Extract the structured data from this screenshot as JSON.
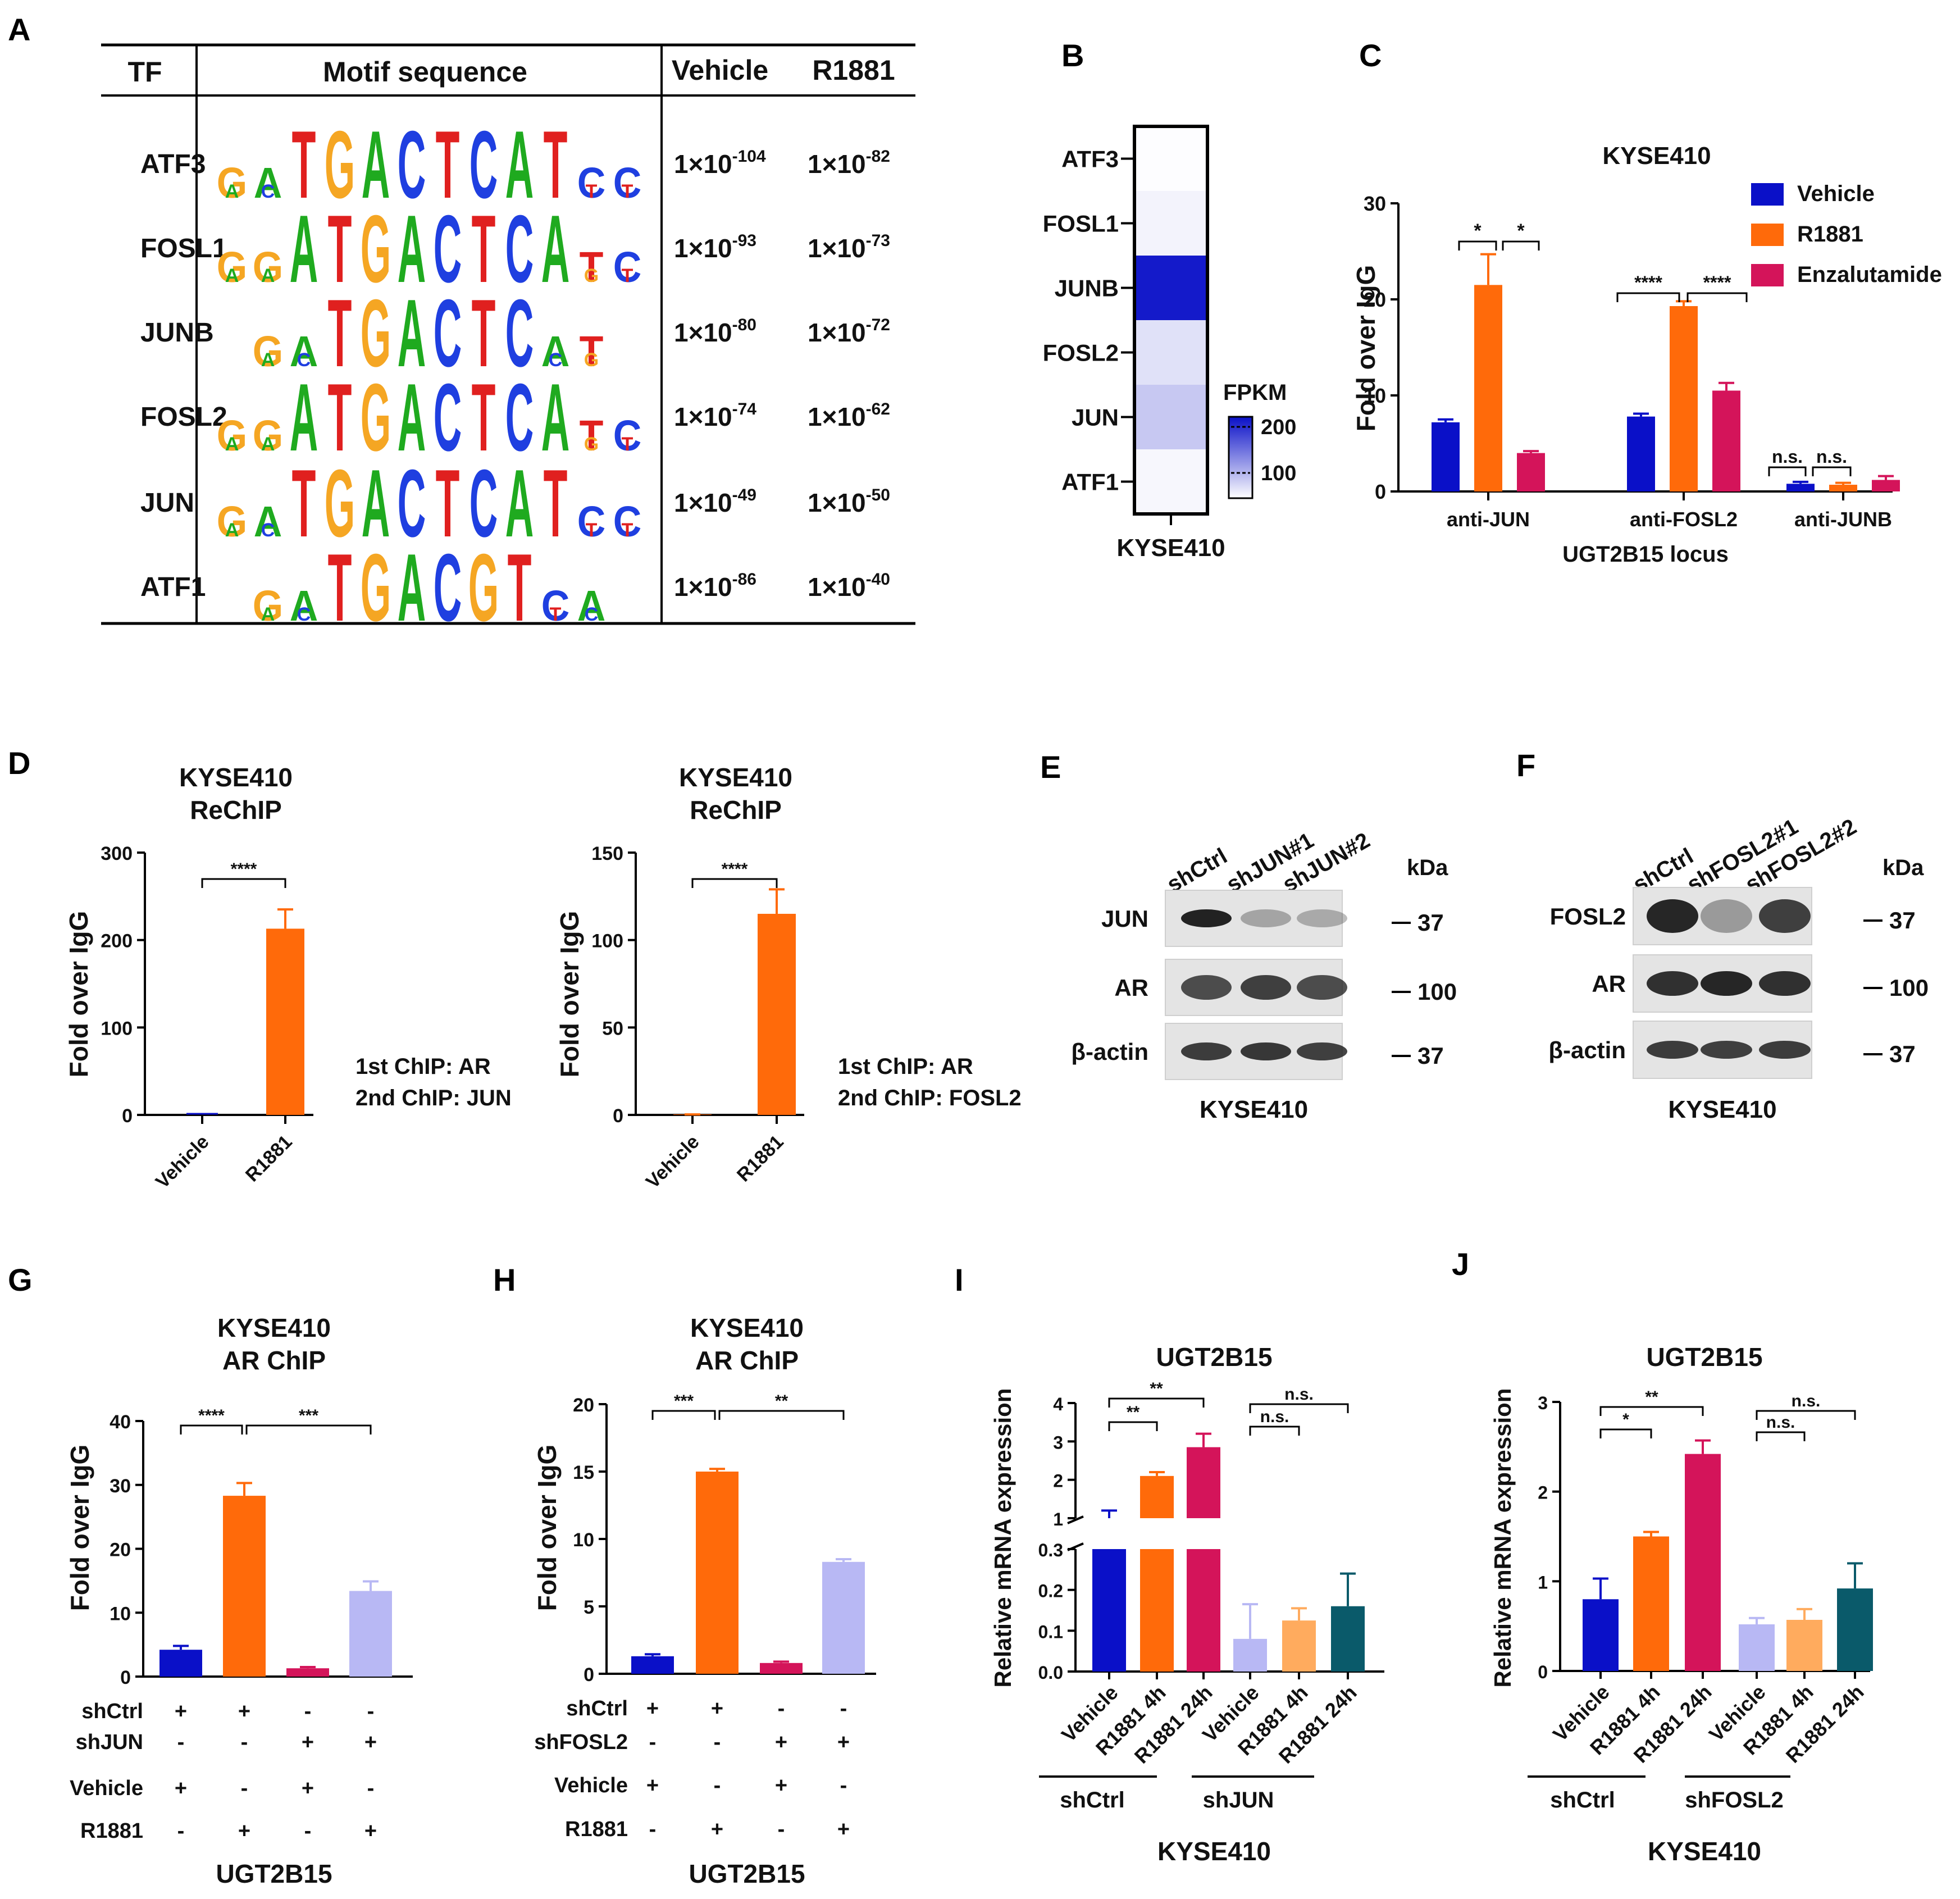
{
  "colors": {
    "vehicle": "#0a10c8",
    "r1881": "#ff6a0a",
    "enzalutamide": "#d4145a",
    "light_blue": "#b8b8f4",
    "light_orange": "#ffab5e",
    "teal": "#0a5a6a",
    "G": "#f5a623",
    "A": "#1faa1f",
    "C": "#1f3fe0",
    "T": "#e0201f"
  },
  "panelA": {
    "letter": "A",
    "headers": {
      "tf": "TF",
      "motif": "Motif sequence",
      "vehicle": "Vehicle",
      "r1881": "R1881"
    },
    "rows": [
      {
        "tf": "ATF3",
        "motif": "GATGACTCATCC",
        "veh_exp": "-104",
        "r_exp": "-82"
      },
      {
        "tf": "FOSL1",
        "motif": "GGATGACTCATC",
        "veh_exp": "-93",
        "r_exp": "-73"
      },
      {
        "tf": "JUNB",
        "motif": "GATGACTCAT",
        "veh_exp": "-80",
        "r_exp": "-72"
      },
      {
        "tf": "FOSL2",
        "motif": "GGATGACTCATC",
        "veh_exp": "-74",
        "r_exp": "-62"
      },
      {
        "tf": "JUN",
        "motif": "GATGACTCATCC",
        "veh_exp": "-49",
        "r_exp": "-50"
      },
      {
        "tf": "ATF1",
        "motif": "GATGACGTCA",
        "veh_exp": "-86",
        "r_exp": "-40"
      }
    ],
    "pvalue_base": "1×10"
  },
  "panelB": {
    "letter": "B",
    "genes": [
      "ATF3",
      "FOSL1",
      "JUNB",
      "FOSL2",
      "JUN",
      "ATF1"
    ],
    "fpkm": [
      2,
      12,
      230,
      30,
      55,
      8
    ],
    "xlabel": "KYSE410",
    "legend_title": "FPKM",
    "legend_ticks": [
      "200",
      "100"
    ]
  },
  "panelC": {
    "letter": "C",
    "chart_data": {
      "type": "bar",
      "title": "KYSE410",
      "ylabel": "Fold over IgG",
      "xlabel": "UGT2B15 locus",
      "ylim": [
        0,
        30
      ],
      "yticks": [
        "0",
        "10",
        "20",
        "30"
      ],
      "categories": [
        "anti-JUN",
        "anti-FOSL2",
        "anti-JUNB"
      ],
      "series": [
        {
          "name": "Vehicle",
          "values": [
            7.2,
            7.8,
            0.8
          ],
          "errors": [
            0.3,
            0.3,
            0.2
          ]
        },
        {
          "name": "R1881",
          "values": [
            21.5,
            19.3,
            0.7
          ],
          "errors": [
            3.2,
            0.5,
            0.2
          ]
        },
        {
          "name": "Enzalutamide",
          "values": [
            4.0,
            10.5,
            1.2
          ],
          "errors": [
            0.2,
            0.8,
            0.4
          ]
        }
      ],
      "significance": [
        "*",
        "*",
        "****",
        "****",
        "n.s.",
        "n.s."
      ]
    }
  },
  "panelD": {
    "letter": "D",
    "charts": [
      {
        "type": "bar",
        "title1": "KYSE410",
        "title2": "ReChIP",
        "ylabel": "Fold over IgG",
        "categories": [
          "Vehicle",
          "R1881"
        ],
        "values": [
          0,
          213
        ],
        "errors": [
          0,
          22
        ],
        "ylim": [
          0,
          300
        ],
        "yticks": [
          "0",
          "100",
          "200",
          "300"
        ],
        "sig": "****",
        "note1": "1st ChIP: AR",
        "note2": "2nd ChIP: JUN"
      },
      {
        "type": "bar",
        "title1": "KYSE410",
        "title2": "ReChIP",
        "ylabel": "Fold over IgG",
        "categories": [
          "Vehicle",
          "R1881"
        ],
        "values": [
          0.3,
          115
        ],
        "errors": [
          0,
          14
        ],
        "ylim": [
          0,
          150
        ],
        "yticks": [
          "0",
          "50",
          "100",
          "150"
        ],
        "sig": "****",
        "note1": "1st ChIP: AR",
        "note2": "2nd ChIP: FOSL2"
      }
    ]
  },
  "panelE": {
    "letter": "E",
    "lanes": [
      "shCtrl",
      "shJUN#1",
      "shJUN#2"
    ],
    "rows": [
      "JUN",
      "AR",
      "β-actin"
    ],
    "kda_label": "kDa",
    "markers": [
      "37",
      "100",
      "37"
    ],
    "cell": "KYSE410"
  },
  "panelF": {
    "letter": "F",
    "lanes": [
      "shCtrl",
      "shFOSL2#1",
      "shFOSL2#2"
    ],
    "rows": [
      "FOSL2",
      "AR",
      "β-actin"
    ],
    "kda_label": "kDa",
    "markers": [
      "37",
      "100",
      "37"
    ],
    "cell": "KYSE410"
  },
  "panelG": {
    "letter": "G",
    "chart_data": {
      "type": "bar",
      "title1": "KYSE410",
      "title2": "AR ChIP",
      "ylabel": "Fold over IgG",
      "ylim": [
        0,
        40
      ],
      "yticks": [
        "0",
        "10",
        "20",
        "30",
        "40"
      ],
      "values": [
        4.2,
        28.3,
        1.3,
        13.4
      ],
      "errors": [
        0.6,
        2.0,
        0.2,
        1.5
      ],
      "sig": [
        "****",
        "***"
      ],
      "condition_rows": [
        {
          "label": "shCtrl",
          "signs": [
            "+",
            "+",
            "-",
            "-"
          ]
        },
        {
          "label": "shJUN",
          "signs": [
            "-",
            "-",
            "+",
            "+"
          ]
        },
        {
          "label": "Vehicle",
          "signs": [
            "+",
            "-",
            "+",
            "-"
          ]
        },
        {
          "label": "R1881",
          "signs": [
            "-",
            "+",
            "-",
            "+"
          ]
        }
      ],
      "xlabel": "UGT2B15"
    }
  },
  "panelH": {
    "letter": "H",
    "chart_data": {
      "type": "bar",
      "title1": "KYSE410",
      "title2": "AR ChIP",
      "ylabel": "Fold over IgG",
      "ylim": [
        0,
        20
      ],
      "yticks": [
        "0",
        "5",
        "10",
        "15",
        "20"
      ],
      "values": [
        1.3,
        15.0,
        0.8,
        8.3
      ],
      "errors": [
        0.15,
        0.2,
        0.1,
        0.2
      ],
      "sig": [
        "***",
        "**"
      ],
      "condition_rows": [
        {
          "label": "shCtrl",
          "signs": [
            "+",
            "+",
            "-",
            "-"
          ]
        },
        {
          "label": "shFOSL2",
          "signs": [
            "-",
            "-",
            "+",
            "+"
          ]
        },
        {
          "label": "Vehicle",
          "signs": [
            "+",
            "-",
            "+",
            "-"
          ]
        },
        {
          "label": "R1881",
          "signs": [
            "-",
            "+",
            "-",
            "+"
          ]
        }
      ],
      "xlabel": "UGT2B15"
    }
  },
  "panelI": {
    "letter": "I",
    "chart_data": {
      "type": "bar",
      "title": "UGT2B15",
      "ylabel": "Relative mRNA expression",
      "axis_break": true,
      "lower_ylim": [
        0,
        0.3
      ],
      "lower_yticks": [
        "0.0",
        "0.1",
        "0.2",
        "0.3"
      ],
      "upper_ylim": [
        1,
        4
      ],
      "upper_yticks": [
        "1",
        "2",
        "3",
        "4"
      ],
      "categories": [
        "Vehicle",
        "R1881 4h",
        "R1881 24h",
        "Vehicle",
        "R1881 4h",
        "R1881 24h"
      ],
      "values": [
        1.0,
        2.1,
        2.85,
        0.08,
        0.125,
        0.16
      ],
      "errors": [
        0.2,
        0.1,
        0.35,
        0.085,
        0.03,
        0.08
      ],
      "groups": [
        "shCtrl",
        "shJUN"
      ],
      "sig": [
        "**",
        "**",
        "n.s.",
        "n.s."
      ],
      "xlabel": "KYSE410"
    }
  },
  "panelJ": {
    "letter": "J",
    "chart_data": {
      "type": "bar",
      "title": "UGT2B15",
      "ylabel": "Relative mRNA expression",
      "ylim": [
        0,
        3
      ],
      "yticks": [
        "0",
        "1",
        "2",
        "3"
      ],
      "categories": [
        "Vehicle",
        "R1881 4h",
        "R1881 24h",
        "Vehicle",
        "R1881 4h",
        "R1881 24h"
      ],
      "values": [
        0.8,
        1.5,
        2.42,
        0.52,
        0.57,
        0.92
      ],
      "errors": [
        0.23,
        0.05,
        0.15,
        0.07,
        0.12,
        0.28
      ],
      "groups": [
        "shCtrl",
        "shFOSL2"
      ],
      "sig": [
        "*",
        "**",
        "n.s.",
        "n.s."
      ],
      "xlabel": "KYSE410"
    }
  }
}
